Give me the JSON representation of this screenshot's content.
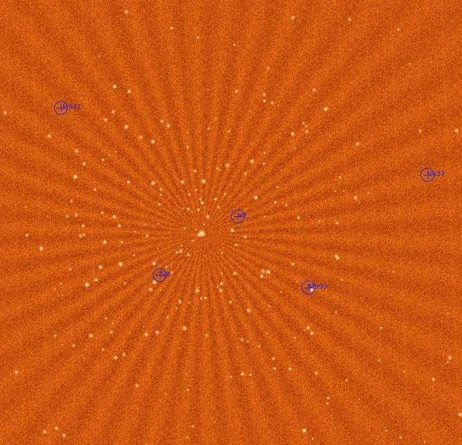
{
  "image": {
    "description_free": true,
    "colors": {
      "background": "#c65a12",
      "noise_dark": "#8a2e00",
      "noise_light": "#f0a040",
      "source": "#fff6d8",
      "marker": "#2a2ad0"
    }
  },
  "markers": [
    {
      "id": "m941",
      "label": "M941"
    },
    {
      "id": "n937",
      "label": "N937"
    },
    {
      "id": "n2",
      "label": "N2"
    },
    {
      "id": "n8",
      "label": "N8"
    },
    {
      "id": "m999",
      "label": "M999"
    }
  ]
}
